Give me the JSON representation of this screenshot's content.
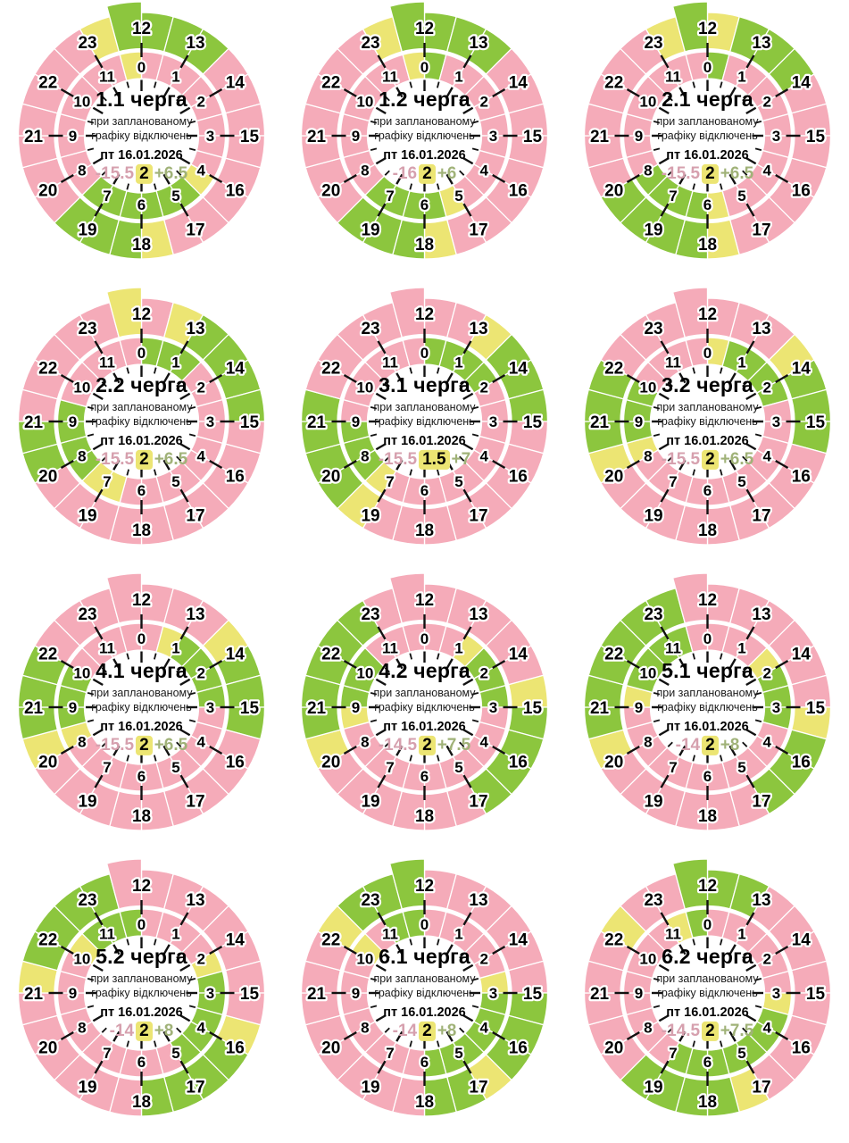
{
  "colors": {
    "off": "#f5abb9",
    "maybe": "#ece573",
    "on": "#8cc63e",
    "stat_off_text": "#d6a0ae",
    "stat_on_text": "#a0b278",
    "chip_bg": "#ece573",
    "tick": "#111111",
    "cell_divider": "#ffffff"
  },
  "dial": {
    "inner_hours": [
      "0",
      "1",
      "2",
      "3",
      "4",
      "5",
      "6",
      "7",
      "8",
      "9",
      "10",
      "11"
    ],
    "outer_hours": [
      "12",
      "13",
      "14",
      "15",
      "16",
      "17",
      "18",
      "19",
      "20",
      "21",
      "22",
      "23"
    ]
  },
  "chart_data": {
    "type": "radial-schedule",
    "rings": 2,
    "hours_per_ring": 12,
    "resolution_hours": 0.5,
    "subtitle": [
      "при запланованому",
      "графіку відключень"
    ],
    "date": "пт 16.01.2026",
    "charts": [
      {
        "title": "1.1 черга",
        "stats": {
          "off": "-15.5",
          "maybe": "2",
          "on": "+6.5"
        },
        "segments": [
          [
            0,
            4,
            "off"
          ],
          [
            4,
            4.5,
            "maybe"
          ],
          [
            4.5,
            7.5,
            "on"
          ],
          [
            7.5,
            11.5,
            "off"
          ],
          [
            11.5,
            12,
            "maybe"
          ],
          [
            12,
            13.5,
            "on"
          ],
          [
            13.5,
            17.5,
            "off"
          ],
          [
            17.5,
            18,
            "maybe"
          ],
          [
            18,
            19.5,
            "on"
          ],
          [
            19.5,
            23,
            "off"
          ],
          [
            23,
            23.5,
            "maybe"
          ],
          [
            23.5,
            24,
            "on"
          ]
        ]
      },
      {
        "title": "1.2 черга",
        "stats": {
          "off": "-16",
          "maybe": "2",
          "on": "+6"
        },
        "segments": [
          [
            0,
            0.5,
            "on"
          ],
          [
            0.5,
            5,
            "off"
          ],
          [
            5,
            5.5,
            "maybe"
          ],
          [
            5.5,
            7.5,
            "on"
          ],
          [
            7.5,
            11.5,
            "off"
          ],
          [
            11.5,
            12,
            "maybe"
          ],
          [
            12,
            13.5,
            "on"
          ],
          [
            13.5,
            17.5,
            "off"
          ],
          [
            17.5,
            18,
            "maybe"
          ],
          [
            18,
            19.5,
            "on"
          ],
          [
            19.5,
            23,
            "off"
          ],
          [
            23,
            23.5,
            "maybe"
          ],
          [
            23.5,
            24,
            "on"
          ]
        ]
      },
      {
        "title": "2.1 черга",
        "stats": {
          "off": "-15.5",
          "maybe": "2",
          "on": "+6.5"
        },
        "segments": [
          [
            0,
            0.5,
            "on"
          ],
          [
            0.5,
            5.5,
            "off"
          ],
          [
            5.5,
            6,
            "maybe"
          ],
          [
            6,
            8,
            "on"
          ],
          [
            8,
            12,
            "off"
          ],
          [
            12,
            12.5,
            "maybe"
          ],
          [
            12.5,
            14,
            "on"
          ],
          [
            14,
            17.5,
            "off"
          ],
          [
            17.5,
            18,
            "maybe"
          ],
          [
            18,
            20,
            "on"
          ],
          [
            20,
            23,
            "off"
          ],
          [
            23,
            23.5,
            "maybe"
          ],
          [
            23.5,
            24,
            "on"
          ]
        ]
      },
      {
        "title": "2.2 черга",
        "stats": {
          "off": "-15.5",
          "maybe": "2",
          "on": "+6.5"
        },
        "segments": [
          [
            0,
            1.5,
            "on"
          ],
          [
            1.5,
            6.5,
            "off"
          ],
          [
            6.5,
            7.5,
            "maybe"
          ],
          [
            7.5,
            9.5,
            "on"
          ],
          [
            9.5,
            12.5,
            "off"
          ],
          [
            12.5,
            13,
            "maybe"
          ],
          [
            13,
            15,
            "on"
          ],
          [
            15,
            20,
            "off"
          ],
          [
            20,
            21,
            "on"
          ],
          [
            21,
            23.5,
            "off"
          ],
          [
            23.5,
            24,
            "maybe"
          ]
        ]
      },
      {
        "title": "3.1 черга",
        "stats": {
          "off": "-15.5",
          "maybe": "1.5",
          "on": "+7"
        },
        "segments": [
          [
            0,
            2,
            "on"
          ],
          [
            2,
            7,
            "off"
          ],
          [
            7,
            7.5,
            "maybe"
          ],
          [
            7.5,
            9,
            "on"
          ],
          [
            9,
            13,
            "off"
          ],
          [
            13,
            13.5,
            "maybe"
          ],
          [
            13.5,
            15,
            "on"
          ],
          [
            15,
            19,
            "off"
          ],
          [
            19,
            19.5,
            "maybe"
          ],
          [
            19.5,
            21.5,
            "on"
          ],
          [
            21.5,
            24,
            "off"
          ]
        ]
      },
      {
        "title": "3.2 черга",
        "stats": {
          "off": "-15.5",
          "maybe": "2",
          "on": "+6.5"
        },
        "segments": [
          [
            0,
            0.5,
            "maybe"
          ],
          [
            0.5,
            2.5,
            "on"
          ],
          [
            2.5,
            8,
            "off"
          ],
          [
            8,
            8.5,
            "maybe"
          ],
          [
            8.5,
            10,
            "on"
          ],
          [
            10,
            13.5,
            "off"
          ],
          [
            13.5,
            14,
            "maybe"
          ],
          [
            14,
            15.5,
            "on"
          ],
          [
            15.5,
            20,
            "off"
          ],
          [
            20,
            20.5,
            "maybe"
          ],
          [
            20.5,
            22,
            "on"
          ],
          [
            22,
            24,
            "off"
          ]
        ]
      },
      {
        "title": "4.1 черга",
        "stats": {
          "off": "-15.5",
          "maybe": "2",
          "on": "+6.5"
        },
        "segments": [
          [
            0,
            0.5,
            "off"
          ],
          [
            0.5,
            1,
            "maybe"
          ],
          [
            1,
            3,
            "on"
          ],
          [
            3,
            8,
            "off"
          ],
          [
            8,
            8.5,
            "maybe"
          ],
          [
            8.5,
            10,
            "on"
          ],
          [
            10,
            13.5,
            "off"
          ],
          [
            13.5,
            14,
            "maybe"
          ],
          [
            14,
            15.5,
            "on"
          ],
          [
            15.5,
            20,
            "off"
          ],
          [
            20,
            20.5,
            "maybe"
          ],
          [
            20.5,
            22,
            "on"
          ],
          [
            22,
            24,
            "off"
          ]
        ]
      },
      {
        "title": "4.2 черга",
        "stats": {
          "off": "-14.5",
          "maybe": "2",
          "on": "+7.5"
        },
        "segments": [
          [
            0,
            1,
            "off"
          ],
          [
            1,
            1.5,
            "maybe"
          ],
          [
            1.5,
            3,
            "on"
          ],
          [
            3,
            8.5,
            "off"
          ],
          [
            8.5,
            9,
            "maybe"
          ],
          [
            9,
            10.5,
            "on"
          ],
          [
            10.5,
            14.5,
            "off"
          ],
          [
            14.5,
            15,
            "maybe"
          ],
          [
            15,
            17,
            "on"
          ],
          [
            17,
            20,
            "off"
          ],
          [
            20,
            20.5,
            "maybe"
          ],
          [
            20.5,
            23,
            "on"
          ],
          [
            23,
            24,
            "off"
          ]
        ]
      },
      {
        "title": "5.1 черга",
        "stats": {
          "off": "-14",
          "maybe": "2",
          "on": "+8"
        },
        "segments": [
          [
            0,
            1.5,
            "off"
          ],
          [
            1.5,
            2,
            "maybe"
          ],
          [
            2,
            3.5,
            "on"
          ],
          [
            3.5,
            9,
            "off"
          ],
          [
            9,
            9.5,
            "maybe"
          ],
          [
            9.5,
            11.5,
            "on"
          ],
          [
            11.5,
            15,
            "off"
          ],
          [
            15,
            15.5,
            "maybe"
          ],
          [
            15.5,
            17,
            "on"
          ],
          [
            17,
            20,
            "off"
          ],
          [
            20,
            20.5,
            "maybe"
          ],
          [
            20.5,
            23.5,
            "on"
          ],
          [
            23.5,
            24,
            "off"
          ]
        ]
      },
      {
        "title": "5.2 черга",
        "stats": {
          "off": "-14",
          "maybe": "2",
          "on": "+8"
        },
        "segments": [
          [
            0,
            2,
            "off"
          ],
          [
            2,
            2.5,
            "maybe"
          ],
          [
            2.5,
            5,
            "on"
          ],
          [
            5,
            10,
            "off"
          ],
          [
            10,
            10.5,
            "maybe"
          ],
          [
            10.5,
            12,
            "on"
          ],
          [
            12,
            15.5,
            "off"
          ],
          [
            15.5,
            16,
            "maybe"
          ],
          [
            16,
            18,
            "on"
          ],
          [
            18,
            21,
            "off"
          ],
          [
            21,
            21.5,
            "maybe"
          ],
          [
            21.5,
            23.5,
            "on"
          ],
          [
            23.5,
            24,
            "off"
          ]
        ]
      },
      {
        "title": "6.1 черга",
        "stats": {
          "off": "-14",
          "maybe": "2",
          "on": "+8"
        },
        "segments": [
          [
            0,
            2.5,
            "off"
          ],
          [
            2.5,
            3,
            "maybe"
          ],
          [
            3,
            6,
            "on"
          ],
          [
            6,
            10,
            "off"
          ],
          [
            10,
            10.5,
            "maybe"
          ],
          [
            10.5,
            11,
            "off"
          ],
          [
            11,
            12,
            "on"
          ],
          [
            12,
            15,
            "off"
          ],
          [
            15,
            16.5,
            "on"
          ],
          [
            16.5,
            17,
            "maybe"
          ],
          [
            17,
            18,
            "on"
          ],
          [
            18,
            22,
            "off"
          ],
          [
            22,
            22.5,
            "maybe"
          ],
          [
            22.5,
            24,
            "on"
          ]
        ]
      },
      {
        "title": "6.2 черга",
        "stats": {
          "off": "-14.5",
          "maybe": "2",
          "on": "+7.5"
        },
        "segments": [
          [
            0,
            3,
            "off"
          ],
          [
            3,
            3.5,
            "maybe"
          ],
          [
            3.5,
            7,
            "on"
          ],
          [
            7,
            11,
            "off"
          ],
          [
            11,
            11.5,
            "maybe"
          ],
          [
            11.5,
            13,
            "on"
          ],
          [
            13,
            17,
            "off"
          ],
          [
            17,
            17.5,
            "maybe"
          ],
          [
            17.5,
            19.5,
            "on"
          ],
          [
            19.5,
            22,
            "off"
          ],
          [
            22,
            22.5,
            "maybe"
          ],
          [
            22.5,
            23.5,
            "off"
          ],
          [
            23.5,
            24,
            "on"
          ]
        ]
      }
    ]
  }
}
